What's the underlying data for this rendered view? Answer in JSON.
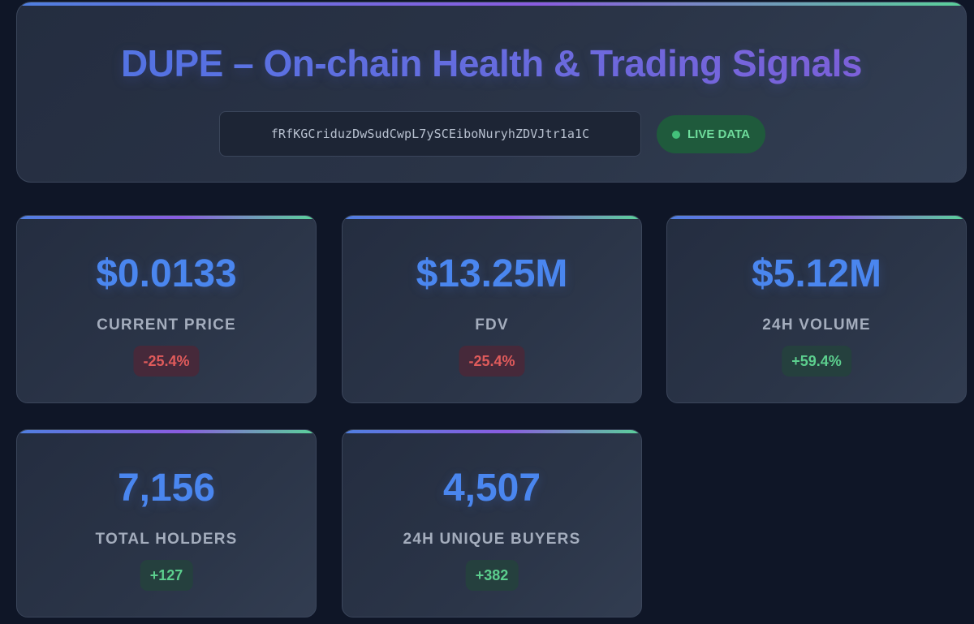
{
  "header": {
    "title": "DUPE – On-chain Health & Trading Signals",
    "token_address": "fRfKGCriduzDwSudCwpL7ySCEiboNuryhZDVJtr1a1C",
    "live_badge": {
      "label": "LIVE DATA",
      "icon": "status-dot-icon"
    }
  },
  "stats": [
    {
      "value": "$0.0133",
      "label": "CURRENT PRICE",
      "change": "-25.4%",
      "direction": "negative"
    },
    {
      "value": "$13.25M",
      "label": "FDV",
      "change": "-25.4%",
      "direction": "negative"
    },
    {
      "value": "$5.12M",
      "label": "24H VOLUME",
      "change": "+59.4%",
      "direction": "positive"
    },
    {
      "value": "7,156",
      "label": "TOTAL HOLDERS",
      "change": "+127",
      "direction": "positive"
    },
    {
      "value": "4,507",
      "label": "24H UNIQUE BUYERS",
      "change": "+382",
      "direction": "positive"
    }
  ],
  "colors": {
    "background": "#0f1627",
    "card": "#2a3447",
    "value_blue": "#4a86ef",
    "negative": "#e05b5b",
    "positive": "#5ccf8e",
    "live_green": "#6fdc9c"
  }
}
